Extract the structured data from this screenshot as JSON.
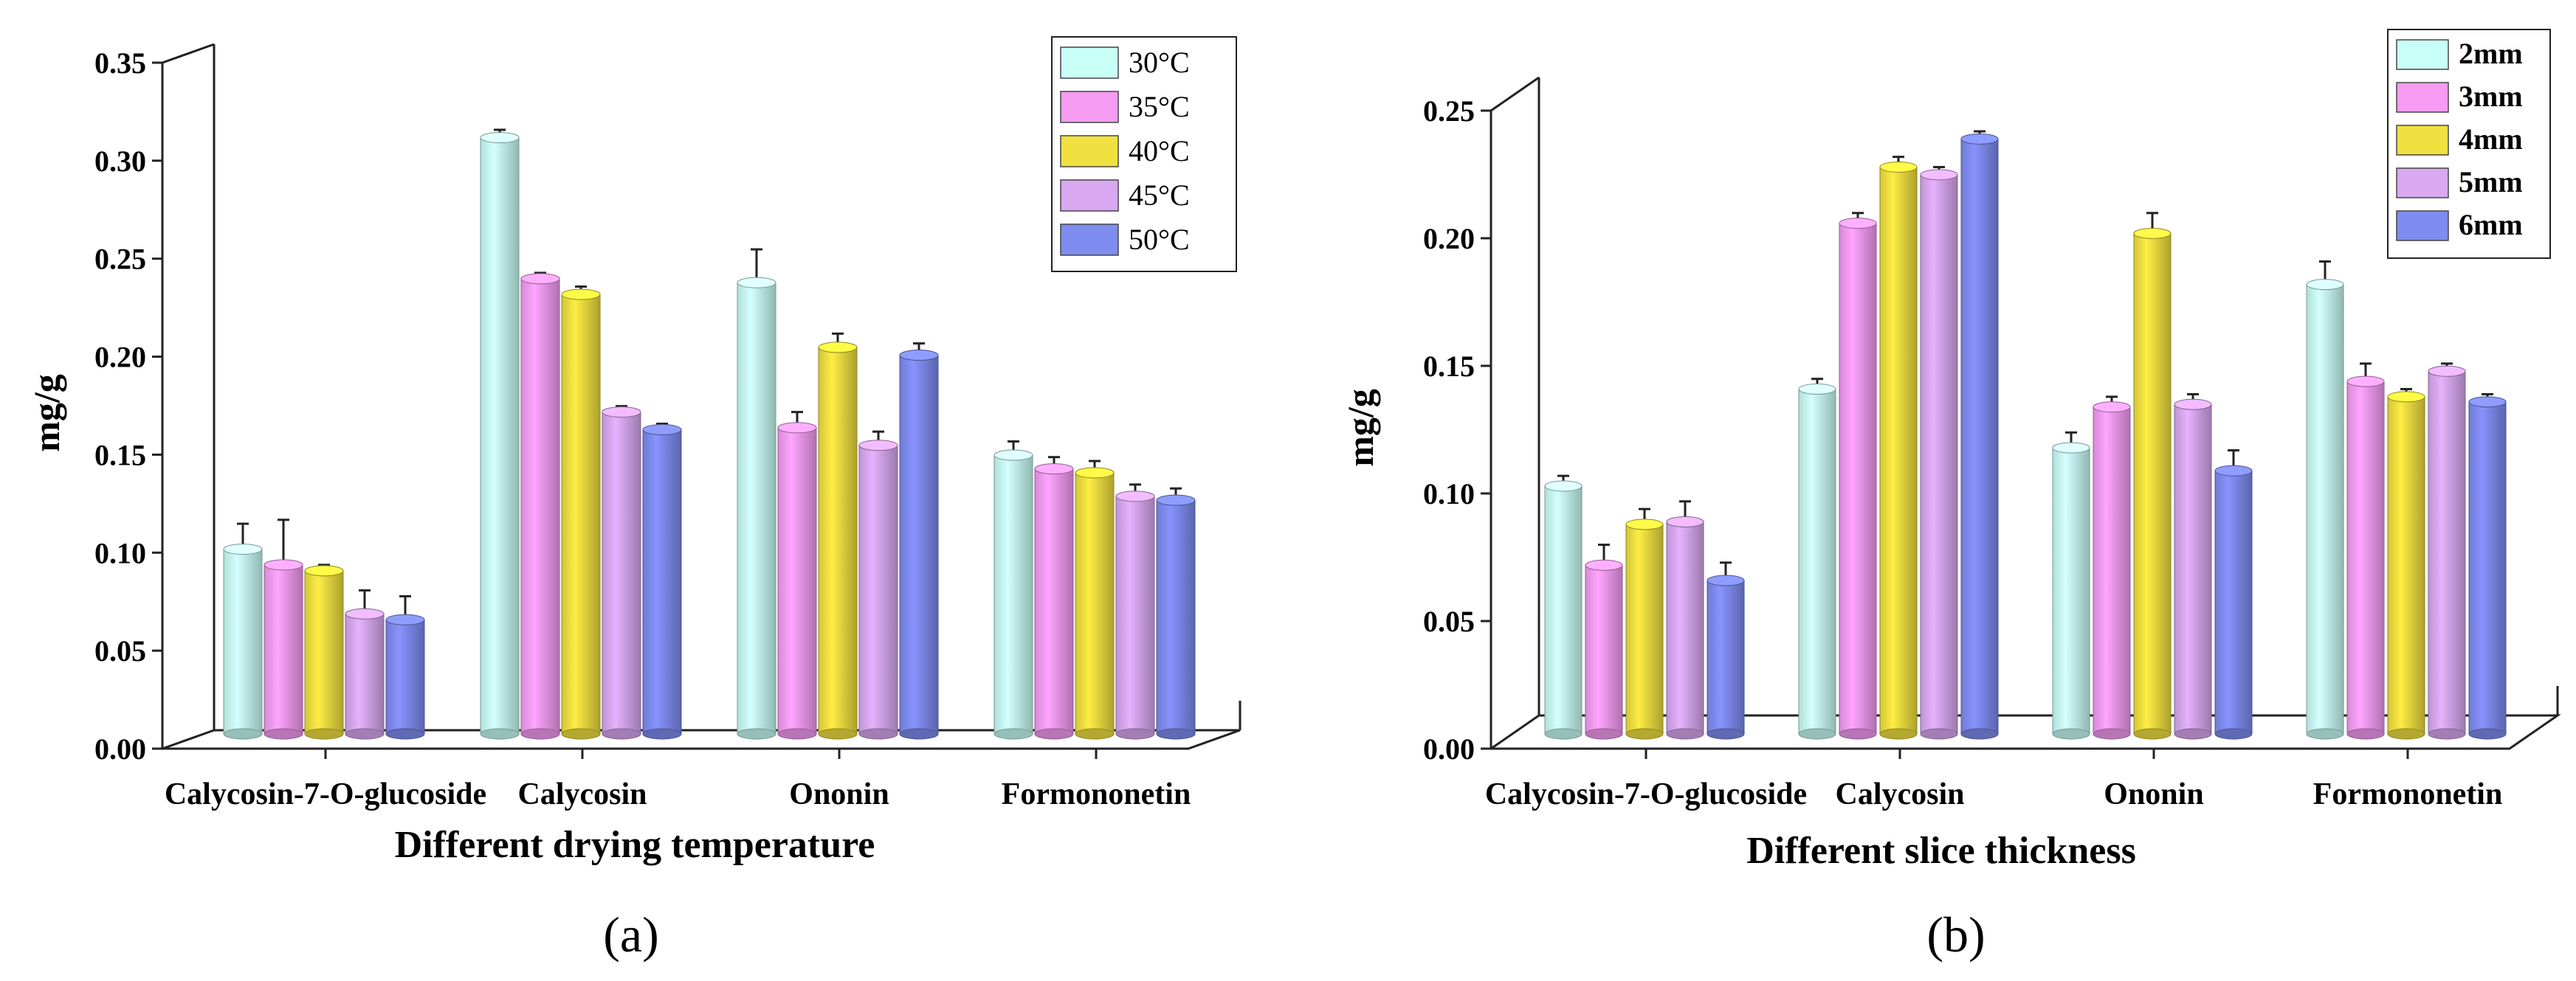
{
  "chart_data": [
    {
      "type": "bar",
      "panel_label": "(a)",
      "title": "",
      "xlabel": "Different drying temperature",
      "ylabel": "mg/g",
      "ylim": [
        0,
        0.35
      ],
      "yticks": [
        "0.00",
        "0.05",
        "0.10",
        "0.15",
        "0.20",
        "0.25",
        "0.30",
        "0.35"
      ],
      "categories": [
        "Calycosin-7-O-glucoside",
        "Calycosin",
        "Ononin",
        "Formononetin"
      ],
      "legend_position": "top-right",
      "series": [
        {
          "name": "30°C",
          "color": "#c8fff6",
          "values": [
            0.098,
            0.308,
            0.234,
            0.146
          ],
          "errors": [
            0.013,
            0.004,
            0.017,
            0.007
          ]
        },
        {
          "name": "35°C",
          "color": "#f59cf2",
          "values": [
            0.09,
            0.236,
            0.16,
            0.139
          ],
          "errors": [
            0.023,
            0.003,
            0.008,
            0.006
          ]
        },
        {
          "name": "40°C",
          "color": "#f0e040",
          "values": [
            0.087,
            0.228,
            0.201,
            0.137
          ],
          "errors": [
            0.003,
            0.004,
            0.007,
            0.006
          ]
        },
        {
          "name": "45°C",
          "color": "#d9a8f0",
          "values": [
            0.065,
            0.168,
            0.151,
            0.125
          ],
          "errors": [
            0.012,
            0.003,
            0.007,
            0.006
          ]
        },
        {
          "name": "50°C",
          "color": "#7f8cf0",
          "values": [
            0.062,
            0.159,
            0.197,
            0.123
          ],
          "errors": [
            0.012,
            0.003,
            0.006,
            0.006
          ]
        }
      ]
    },
    {
      "type": "bar",
      "panel_label": "(b)",
      "title": "",
      "xlabel": "Different slice thickness",
      "ylabel": "mg/g",
      "ylim": [
        0,
        0.25
      ],
      "yticks": [
        "0.00",
        "0.05",
        "0.10",
        "0.15",
        "0.20",
        "0.25"
      ],
      "categories": [
        "Calycosin-7-O-glucoside",
        "Calycosin",
        "Ononin",
        "Formononetin"
      ],
      "legend_position": "top-right",
      "series": [
        {
          "name": "2mm",
          "color": "#c8fff6",
          "values": [
            0.1,
            0.138,
            0.115,
            0.179
          ],
          "errors": [
            0.004,
            0.004,
            0.006,
            0.009
          ]
        },
        {
          "name": "3mm",
          "color": "#f59cf2",
          "values": [
            0.069,
            0.203,
            0.131,
            0.141
          ],
          "errors": [
            0.008,
            0.004,
            0.004,
            0.007
          ]
        },
        {
          "name": "4mm",
          "color": "#f0e040",
          "values": [
            0.085,
            0.225,
            0.199,
            0.135
          ],
          "errors": [
            0.006,
            0.004,
            0.008,
            0.003
          ]
        },
        {
          "name": "5mm",
          "color": "#d9a8f0",
          "values": [
            0.086,
            0.222,
            0.132,
            0.145
          ],
          "errors": [
            0.008,
            0.003,
            0.004,
            0.003
          ]
        },
        {
          "name": "6mm",
          "color": "#7f8cf0",
          "values": [
            0.063,
            0.236,
            0.106,
            0.133
          ],
          "errors": [
            0.007,
            0.003,
            0.008,
            0.003
          ]
        }
      ]
    }
  ]
}
